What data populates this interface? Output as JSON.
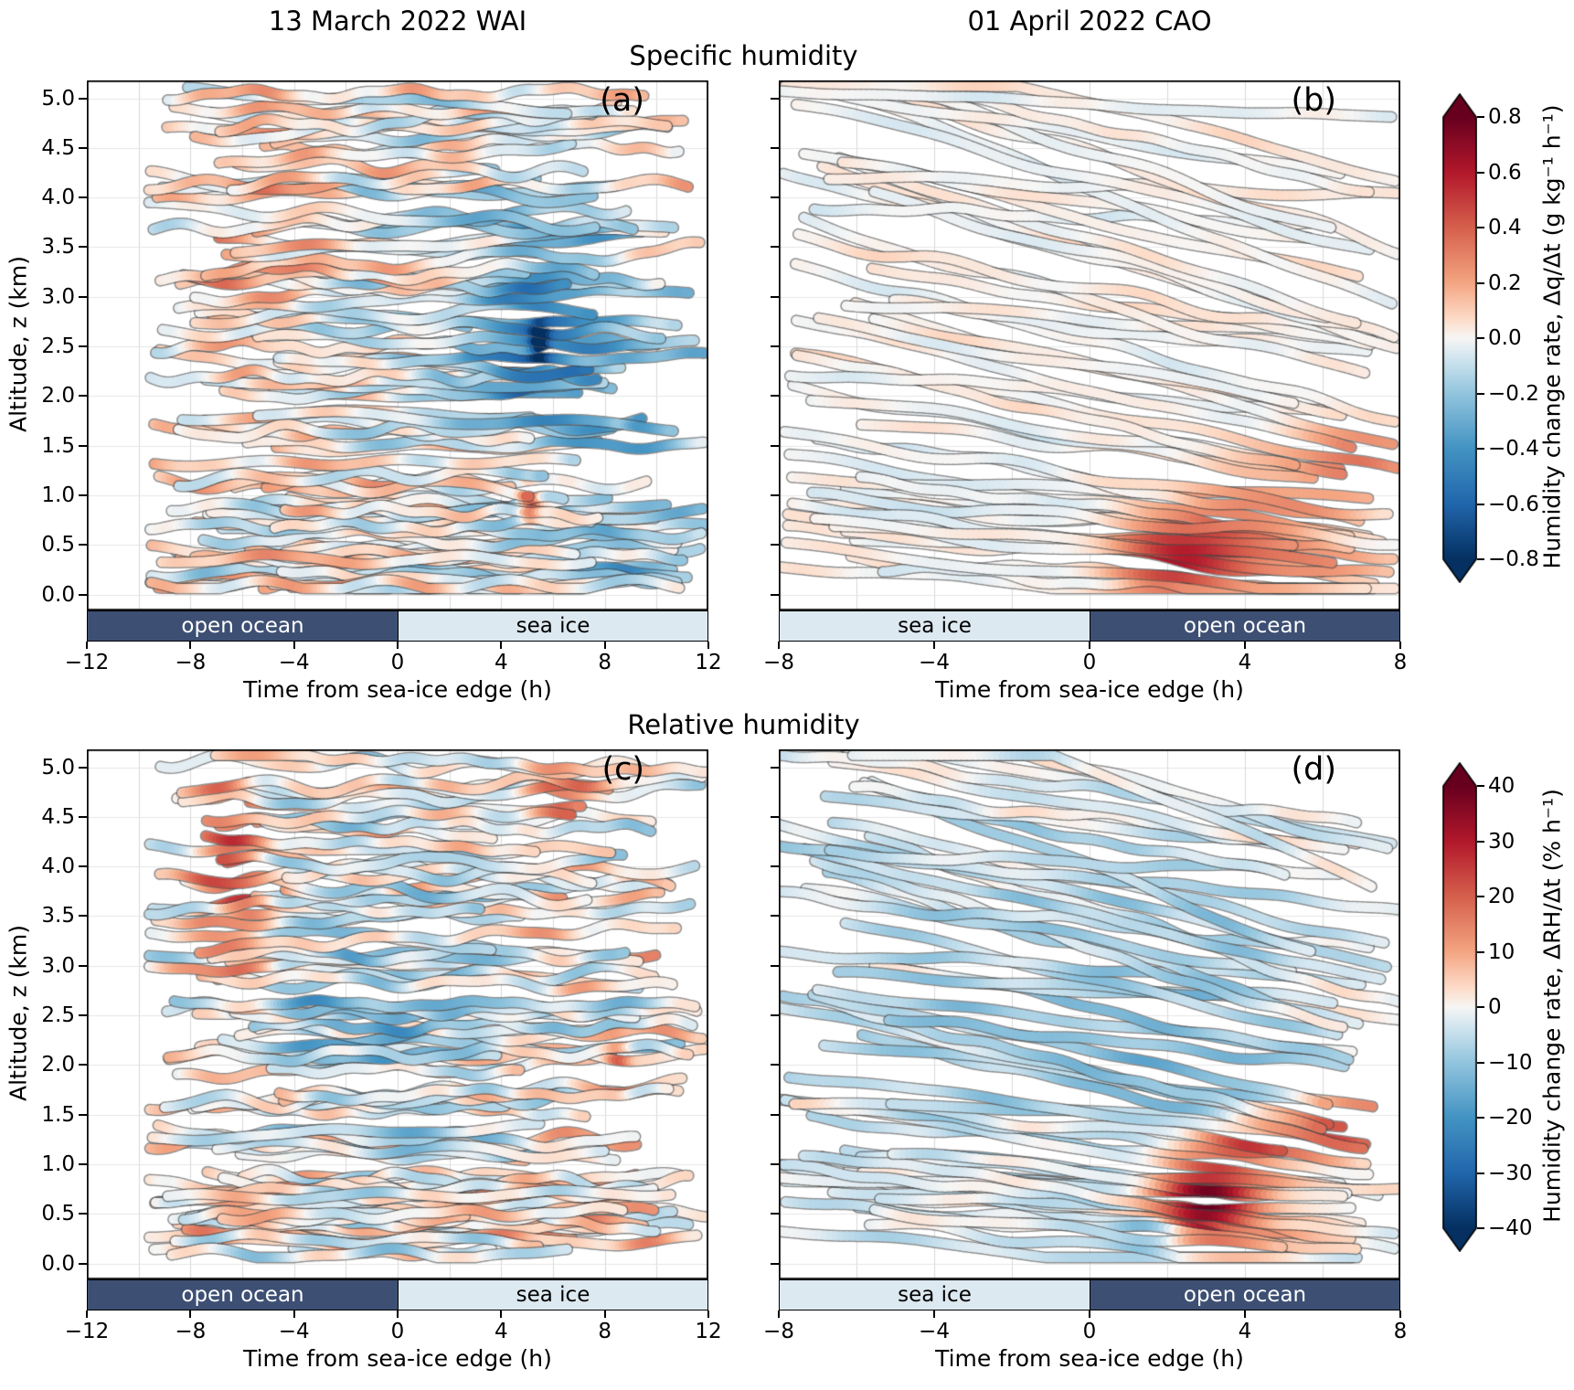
{
  "figure": {
    "column_titles": [
      "13 March 2022 WAI",
      "01 April 2022 CAO"
    ],
    "row_titles": [
      "Specific humidity",
      "Relative humidity"
    ],
    "ylabel": "Altitude, z (km)",
    "xlabel": "Time from sea-ice edge (h)",
    "colors": {
      "ocean_fill": "#3d4f73",
      "ocean_text": "#ffffff",
      "ice_fill": "#dde9f0",
      "ice_text": "#000000",
      "grid": "#d9d9d9",
      "track_outline": "rgba(70,70,70,0.6)"
    }
  },
  "chart_data": {
    "type": "trajectory-curtain",
    "description": "Flight-track curtains of humidity change rate vs altitude and time from the sea-ice edge; tracks colored by a diverging blue-white-red colormap.",
    "yticks": [
      {
        "v": 0.0,
        "label": "0.0"
      },
      {
        "v": 0.5,
        "label": "0.5"
      },
      {
        "v": 1.0,
        "label": "1.0"
      },
      {
        "v": 1.5,
        "label": "1.5"
      },
      {
        "v": 2.0,
        "label": "2.0"
      },
      {
        "v": 2.5,
        "label": "2.5"
      },
      {
        "v": 3.0,
        "label": "3.0"
      },
      {
        "v": 3.5,
        "label": "3.5"
      },
      {
        "v": 4.0,
        "label": "4.0"
      },
      {
        "v": 4.5,
        "label": "4.5"
      },
      {
        "v": 5.0,
        "label": "5.0"
      }
    ],
    "colorbars": [
      {
        "label": "Humidity change rate, Δq/Δt (g kg⁻¹ h⁻¹)",
        "vmin": -0.8,
        "vmax": 0.8,
        "ticks": [
          {
            "v": 0.8,
            "label": "0.8"
          },
          {
            "v": 0.6,
            "label": "0.6"
          },
          {
            "v": 0.4,
            "label": "0.4"
          },
          {
            "v": 0.2,
            "label": "0.2"
          },
          {
            "v": 0.0,
            "label": "0.0"
          },
          {
            "v": -0.2,
            "label": "−0.2"
          },
          {
            "v": -0.4,
            "label": "−0.4"
          },
          {
            "v": -0.6,
            "label": "−0.6"
          },
          {
            "v": -0.8,
            "label": "−0.8"
          }
        ]
      },
      {
        "label": "Humidity change rate, ΔRH/Δt (% h⁻¹)",
        "vmin": -40,
        "vmax": 40,
        "ticks": [
          {
            "v": 40,
            "label": "40"
          },
          {
            "v": 30,
            "label": "30"
          },
          {
            "v": 20,
            "label": "20"
          },
          {
            "v": 10,
            "label": "10"
          },
          {
            "v": 0,
            "label": "0"
          },
          {
            "v": -10,
            "label": "−10"
          },
          {
            "v": -20,
            "label": "−20"
          },
          {
            "v": -30,
            "label": "−30"
          },
          {
            "v": -40,
            "label": "−40"
          }
        ]
      }
    ],
    "panels": [
      {
        "id": "a",
        "letter": "(a)",
        "row": 0,
        "col": 0,
        "xlim": [
          -12,
          12
        ],
        "ylim": [
          0,
          5
        ],
        "xticks": [
          {
            "v": -12,
            "label": "−12"
          },
          {
            "v": -8,
            "label": "−8"
          },
          {
            "v": -4,
            "label": "−4"
          },
          {
            "v": 0,
            "label": "0"
          },
          {
            "v": 4,
            "label": "4"
          },
          {
            "v": 8,
            "label": "8"
          },
          {
            "v": 12,
            "label": "12"
          }
        ],
        "surface_bands": [
          {
            "type": "ocean",
            "label": "open ocean",
            "from": -12,
            "to": 0
          },
          {
            "type": "ice",
            "label": "sea ice",
            "from": 0,
            "to": 12
          }
        ],
        "tracks": {
          "count": 84,
          "seed": 11,
          "xstart": [
            -9.6,
            -4.0
          ],
          "xend": [
            2.0,
            12.0
          ],
          "slope": 0.0,
          "slope_var": 0.012,
          "wiggle": 0.05
        },
        "field": {
          "base": 0,
          "noise": 0.17,
          "blobs": [
            {
              "x": 6.0,
              "y": 2.9,
              "sx": 4.0,
              "sy": 1.3,
              "a": -0.3
            },
            {
              "x": 9.5,
              "y": 1.7,
              "sx": 2.5,
              "sy": 0.9,
              "a": -0.22
            },
            {
              "x": 5.0,
              "y": 2.3,
              "sx": 1.2,
              "sy": 0.5,
              "a": -0.25
            },
            {
              "x": 8.0,
              "y": 0.3,
              "sx": 4.0,
              "sy": 0.3,
              "a": -0.2
            },
            {
              "x": -6.5,
              "y": 3.8,
              "sx": 2.5,
              "sy": 1.2,
              "a": 0.15
            },
            {
              "x": -4.0,
              "y": 2.2,
              "sx": 3.0,
              "sy": 1.5,
              "a": 0.08
            },
            {
              "x": 8.7,
              "y": 1.95,
              "sx": 0.45,
              "sy": 0.2,
              "a": 0.7
            },
            {
              "x": 5.6,
              "y": 2.55,
              "sx": 0.35,
              "sy": 0.18,
              "a": -0.6
            },
            {
              "x": 5.2,
              "y": 0.95,
              "sx": 0.4,
              "sy": 0.2,
              "a": 0.6
            }
          ]
        }
      },
      {
        "id": "b",
        "letter": "(b)",
        "row": 0,
        "col": 1,
        "xlim": [
          -8,
          8
        ],
        "ylim": [
          0,
          5
        ],
        "xticks": [
          {
            "v": -8,
            "label": "−8"
          },
          {
            "v": -4,
            "label": "−4"
          },
          {
            "v": 0,
            "label": "0"
          },
          {
            "v": 4,
            "label": "4"
          },
          {
            "v": 8,
            "label": "8"
          }
        ],
        "surface_bands": [
          {
            "type": "ice",
            "label": "sea ice",
            "from": -8,
            "to": 0
          },
          {
            "type": "ocean",
            "label": "open ocean",
            "from": 0,
            "to": 8
          }
        ],
        "tracks": {
          "count": 52,
          "seed": 23,
          "xstart": [
            -8.0,
            -5.0
          ],
          "xend": [
            4.5,
            8.0
          ],
          "slope": -0.06,
          "slope_var": 0.05,
          "wiggle": 0.035
        },
        "field": {
          "base": 0.01,
          "noise": 0.05,
          "blobs": [
            {
              "x": 2.3,
              "y": 0.35,
              "sx": 1.7,
              "sy": 0.35,
              "a": 0.5
            },
            {
              "x": 4.3,
              "y": 0.8,
              "sx": 2.4,
              "sy": 0.45,
              "a": 0.28
            },
            {
              "x": 7.0,
              "y": 1.35,
              "sx": 1.6,
              "sy": 0.35,
              "a": 0.3
            },
            {
              "x": 5.5,
              "y": 0.25,
              "sx": 2.5,
              "sy": 0.25,
              "a": 0.18
            },
            {
              "x": -3.0,
              "y": 1.0,
              "sx": 3.0,
              "sy": 0.8,
              "a": -0.05
            }
          ]
        }
      },
      {
        "id": "c",
        "letter": "(c)",
        "row": 1,
        "col": 0,
        "xlim": [
          -12,
          12
        ],
        "ylim": [
          0,
          5
        ],
        "xticks": [
          {
            "v": -12,
            "label": "−12"
          },
          {
            "v": -8,
            "label": "−8"
          },
          {
            "v": -4,
            "label": "−4"
          },
          {
            "v": 0,
            "label": "0"
          },
          {
            "v": 4,
            "label": "4"
          },
          {
            "v": 8,
            "label": "8"
          },
          {
            "v": 12,
            "label": "12"
          }
        ],
        "surface_bands": [
          {
            "type": "ocean",
            "label": "open ocean",
            "from": -12,
            "to": 0
          },
          {
            "type": "ice",
            "label": "sea ice",
            "from": 0,
            "to": 12
          }
        ],
        "tracks": {
          "count": 84,
          "seed": 37,
          "xstart": [
            -9.6,
            -4.0
          ],
          "xend": [
            2.0,
            12.0
          ],
          "slope": 0.0,
          "slope_var": 0.012,
          "wiggle": 0.05
        },
        "field": {
          "base": 0,
          "noise": 9,
          "blobs": [
            {
              "x": -6.6,
              "y": 4.1,
              "sx": 1.5,
              "sy": 1.1,
              "a": 16
            },
            {
              "x": -5.6,
              "y": 3.6,
              "sx": 1.0,
              "sy": 0.7,
              "a": 12
            },
            {
              "x": -2.0,
              "y": 2.6,
              "sx": 3.0,
              "sy": 1.2,
              "a": -8
            },
            {
              "x": 2.5,
              "y": 2.1,
              "sx": 3.5,
              "sy": 1.4,
              "a": -5
            },
            {
              "x": 6.2,
              "y": 4.8,
              "sx": 1.6,
              "sy": 0.5,
              "a": 14
            },
            {
              "x": 5.5,
              "y": 0.9,
              "sx": 4.0,
              "sy": 0.8,
              "a": 5
            },
            {
              "x": 8.6,
              "y": 2.0,
              "sx": 0.5,
              "sy": 0.25,
              "a": 22
            },
            {
              "x": -7.0,
              "y": 1.0,
              "sx": 2.0,
              "sy": 0.8,
              "a": 6
            }
          ]
        }
      },
      {
        "id": "d",
        "letter": "(d)",
        "row": 1,
        "col": 1,
        "xlim": [
          -8,
          8
        ],
        "ylim": [
          0,
          5
        ],
        "xticks": [
          {
            "v": -8,
            "label": "−8"
          },
          {
            "v": -4,
            "label": "−4"
          },
          {
            "v": 0,
            "label": "0"
          },
          {
            "v": 4,
            "label": "4"
          },
          {
            "v": 8,
            "label": "8"
          }
        ],
        "surface_bands": [
          {
            "type": "ice",
            "label": "sea ice",
            "from": -8,
            "to": 0
          },
          {
            "type": "ocean",
            "label": "open ocean",
            "from": 0,
            "to": 8
          }
        ],
        "tracks": {
          "count": 56,
          "seed": 51,
          "xstart": [
            -8.0,
            -5.0
          ],
          "xend": [
            4.5,
            8.0
          ],
          "slope": -0.06,
          "slope_var": 0.05,
          "wiggle": 0.035
        },
        "field": {
          "base": -3,
          "noise": 5,
          "blobs": [
            {
              "x": 2.9,
              "y": 0.6,
              "sx": 1.3,
              "sy": 0.35,
              "a": 40
            },
            {
              "x": 3.8,
              "y": 1.15,
              "sx": 1.7,
              "sy": 0.3,
              "a": 26
            },
            {
              "x": 6.9,
              "y": 1.35,
              "sx": 1.5,
              "sy": 0.3,
              "a": 30
            },
            {
              "x": 1.7,
              "y": 0.3,
              "sx": 0.9,
              "sy": 0.2,
              "a": -16
            },
            {
              "x": 2.4,
              "y": 2.0,
              "sx": 2.5,
              "sy": 1.3,
              "a": -7
            },
            {
              "x": 5.0,
              "y": 0.35,
              "sx": 2.0,
              "sy": 0.35,
              "a": 10
            },
            {
              "x": -3.0,
              "y": 2.5,
              "sx": 4.0,
              "sy": 1.5,
              "a": -4
            }
          ]
        }
      }
    ]
  }
}
